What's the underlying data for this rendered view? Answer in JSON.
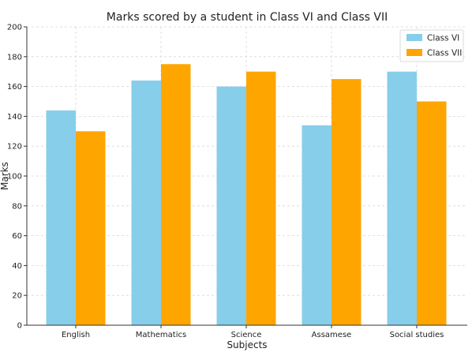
{
  "chart_data": {
    "type": "bar",
    "title": "Marks scored by a student in Class VI and Class VII",
    "xlabel": "Subjects",
    "ylabel": "Marks",
    "categories": [
      "English",
      "Mathematics",
      "Science",
      "Assamese",
      "Social studies"
    ],
    "series": [
      {
        "name": "Class VI",
        "values": [
          144,
          164,
          160,
          134,
          170
        ],
        "color": "#87CEEB"
      },
      {
        "name": "Class VII",
        "values": [
          130,
          175,
          170,
          165,
          150
        ],
        "color": "#FFA500"
      }
    ],
    "ylim": [
      0,
      200
    ],
    "yticks": [
      0,
      20,
      40,
      60,
      80,
      100,
      120,
      140,
      160,
      180,
      200
    ],
    "grid": true,
    "legend_position": "top-right"
  }
}
